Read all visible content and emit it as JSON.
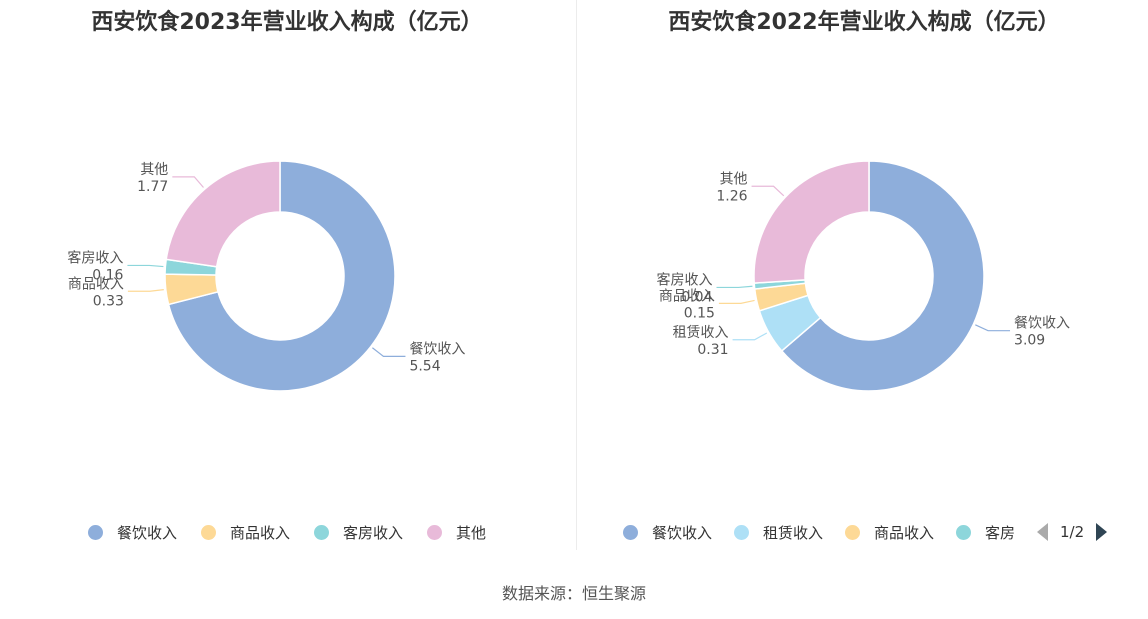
{
  "chart_data": [
    {
      "type": "pie",
      "title": "西安饮食2023年营业收入构成（亿元）",
      "slices": [
        {
          "name": "餐饮收入",
          "value": 5.54,
          "label": "5.54",
          "color": "#8eaedb"
        },
        {
          "name": "商品收入",
          "value": 0.33,
          "label": "0.33",
          "color": "#fdd996"
        },
        {
          "name": "客房收入",
          "value": 0.16,
          "label": "0.16",
          "color": "#8dd6db"
        },
        {
          "name": "其他",
          "value": 1.77,
          "label": "1.77",
          "color": "#e8bad9"
        }
      ],
      "legend": [
        "餐饮收入",
        "商品收入",
        "客房收入",
        "其他"
      ],
      "legend_position": "bottom"
    },
    {
      "type": "pie",
      "title": "西安饮食2022年营业收入构成（亿元）",
      "slices": [
        {
          "name": "餐饮收入",
          "value": 3.09,
          "label": "3.09",
          "color": "#8eaedb"
        },
        {
          "name": "租赁收入",
          "value": 0.31,
          "label": "0.31",
          "color": "#aee0f6"
        },
        {
          "name": "商品收入",
          "value": 0.15,
          "label": "0.15",
          "color": "#fdd996"
        },
        {
          "name": "客房收入",
          "value": 0.04,
          "label": "0.04",
          "color": "#8dd6db"
        },
        {
          "name": "其他",
          "value": 1.26,
          "label": "1.26",
          "color": "#e8bad9"
        }
      ],
      "legend": [
        "餐饮收入",
        "租赁收入",
        "商品收入",
        "客房"
      ],
      "legend_position": "bottom",
      "legend_page": "1/2"
    }
  ],
  "source": "数据来源：恒生聚源"
}
